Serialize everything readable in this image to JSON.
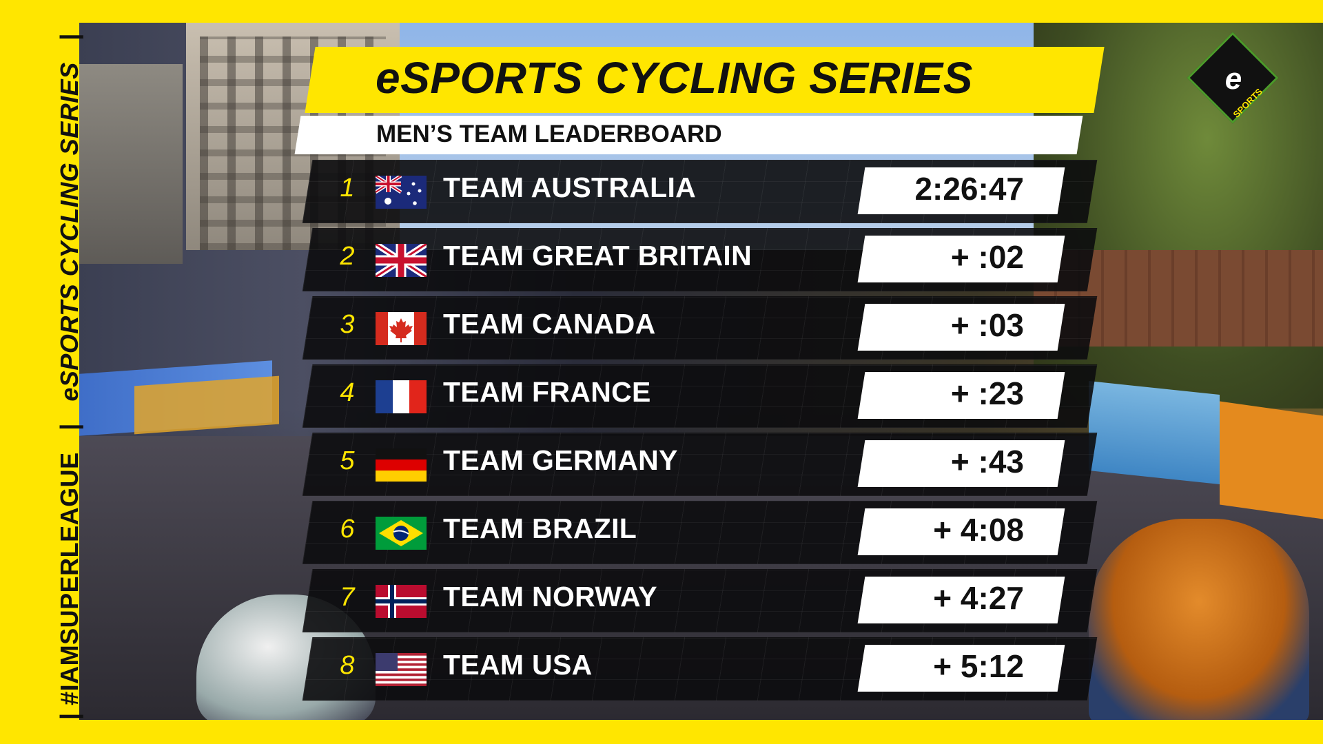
{
  "side_banner": {
    "hashtag": "#IAMSUPERLEAGUE",
    "separator": "|",
    "series_prefix": "e",
    "series_rest": "SPORTS CYCLING SERIES"
  },
  "logo": {
    "letter": "e",
    "subtitle": "SPORTS"
  },
  "header": {
    "title": "eSPORTS CYCLING SERIES",
    "subtitle": "MEN’S TEAM LEADERBOARD"
  },
  "leaderboard": [
    {
      "rank": "1",
      "team": "TEAM AUSTRALIA",
      "time": "2:26:47",
      "flag": "australia-flag"
    },
    {
      "rank": "2",
      "team": "TEAM GREAT BRITAIN",
      "time": "+ :02",
      "flag": "great-britain-flag"
    },
    {
      "rank": "3",
      "team": "TEAM CANADA",
      "time": "+ :03",
      "flag": "canada-flag"
    },
    {
      "rank": "4",
      "team": "TEAM FRANCE",
      "time": "+ :23",
      "flag": "france-flag"
    },
    {
      "rank": "5",
      "team": "TEAM GERMANY",
      "time": "+ :43",
      "flag": "germany-flag"
    },
    {
      "rank": "6",
      "team": "TEAM BRAZIL",
      "time": "+ 4:08",
      "flag": "brazil-flag"
    },
    {
      "rank": "7",
      "team": "TEAM NORWAY",
      "time": "+ 4:27",
      "flag": "norway-flag"
    },
    {
      "rank": "8",
      "team": "TEAM USA",
      "time": "+ 5:12",
      "flag": "usa-flag"
    }
  ],
  "colors": {
    "accent_yellow": "#ffe600",
    "row_bg": "#0c0c0e",
    "text_white": "#ffffff",
    "text_dark": "#111111"
  }
}
